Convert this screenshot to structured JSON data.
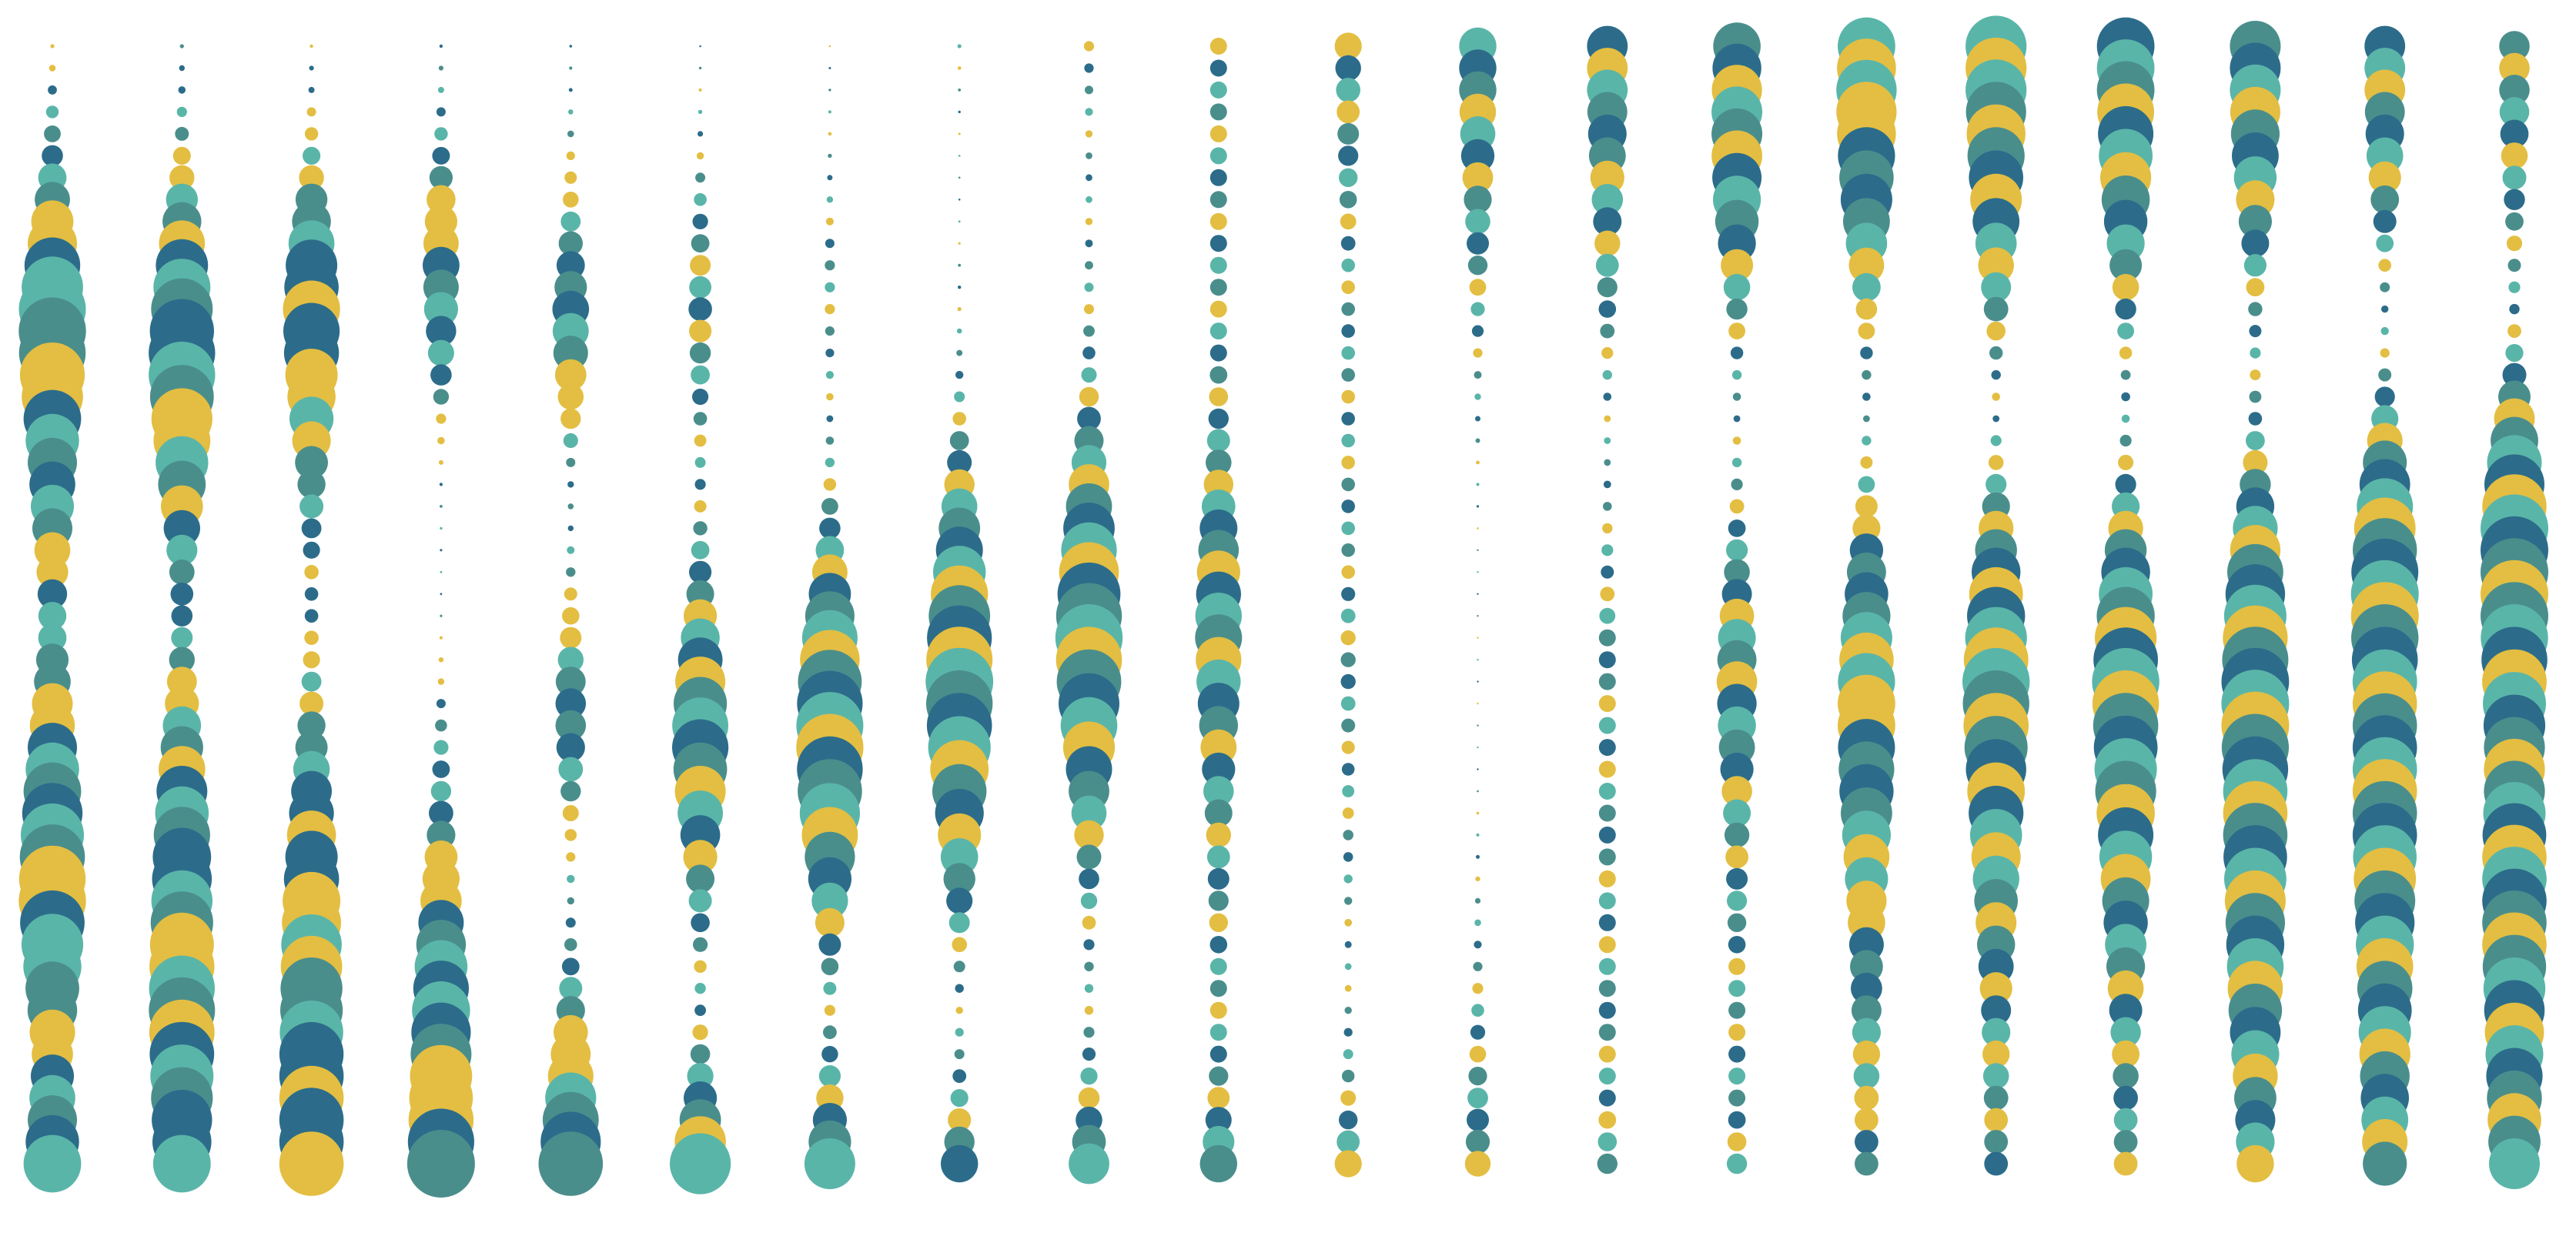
{
  "palette": {
    "yellow": "#E3BE42",
    "teal_light": "#5AB5A9",
    "teal_mid": "#4A8E8C",
    "blue_dark": "#2C6C8A"
  },
  "columns": [
    {
      "size": [
        0.06,
        0.15,
        0.3,
        0.55,
        0.8,
        1.0,
        0.98,
        0.85,
        0.7,
        0.6,
        0.45,
        0.4,
        0.55,
        0.7,
        0.85,
        0.95,
        1.0,
        0.9,
        0.75,
        0.6,
        0.7,
        0.85
      ],
      "colors": [
        "yellow",
        "teal_mid",
        "teal_light",
        "yellow",
        "teal_mid",
        "blue_dark",
        "teal_light",
        "yellow",
        "teal_mid",
        "teal_light",
        "blue_dark",
        "yellow",
        "teal_light",
        "teal_mid",
        "blue_dark"
      ]
    },
    {
      "size": [
        0.06,
        0.12,
        0.25,
        0.5,
        0.75,
        0.92,
        1.0,
        0.9,
        0.75,
        0.55,
        0.35,
        0.3,
        0.45,
        0.6,
        0.75,
        0.85,
        0.9,
        0.95,
        0.98,
        0.95,
        0.9,
        0.85
      ],
      "colors": [
        "teal_light",
        "blue_dark",
        "yellow",
        "teal_mid",
        "teal_light",
        "blue_dark",
        "yellow",
        "teal_mid",
        "teal_light",
        "yellow",
        "blue_dark",
        "teal_mid"
      ]
    },
    {
      "size": [
        0.05,
        0.1,
        0.25,
        0.5,
        0.75,
        0.85,
        0.8,
        0.65,
        0.45,
        0.3,
        0.2,
        0.2,
        0.3,
        0.45,
        0.6,
        0.75,
        0.85,
        0.9,
        0.92,
        0.95,
        0.95,
        0.95
      ],
      "colors": [
        "yellow",
        "blue_dark",
        "teal_mid",
        "yellow",
        "blue_dark",
        "teal_light",
        "yellow",
        "teal_mid",
        "blue_dark",
        "teal_light",
        "yellow",
        "blue_dark"
      ]
    },
    {
      "size": [
        0.05,
        0.1,
        0.25,
        0.45,
        0.55,
        0.5,
        0.35,
        0.15,
        0.05,
        0.04,
        0.03,
        0.04,
        0.1,
        0.2,
        0.3,
        0.45,
        0.6,
        0.75,
        0.85,
        0.9,
        0.95,
        1.0
      ],
      "colors": [
        "blue_dark",
        "teal_mid",
        "yellow",
        "teal_light",
        "blue_dark",
        "yellow",
        "teal_mid",
        "teal_light",
        "yellow",
        "blue_dark"
      ]
    },
    {
      "size": [
        0.04,
        0.06,
        0.12,
        0.25,
        0.4,
        0.55,
        0.5,
        0.3,
        0.1,
        0.08,
        0.15,
        0.3,
        0.45,
        0.45,
        0.3,
        0.15,
        0.1,
        0.2,
        0.4,
        0.6,
        0.8,
        0.95
      ],
      "colors": [
        "teal_mid",
        "yellow",
        "blue_dark",
        "teal_light",
        "yellow",
        "teal_mid",
        "blue_dark",
        "yellow",
        "teal_light",
        "teal_mid"
      ]
    },
    {
      "size": [
        0.03,
        0.05,
        0.1,
        0.2,
        0.3,
        0.35,
        0.3,
        0.2,
        0.15,
        0.2,
        0.35,
        0.55,
        0.75,
        0.85,
        0.75,
        0.55,
        0.35,
        0.2,
        0.15,
        0.3,
        0.55,
        0.9
      ],
      "colors": [
        "teal_light",
        "teal_mid",
        "yellow",
        "blue_dark",
        "teal_light",
        "yellow",
        "teal_mid",
        "blue_dark"
      ]
    },
    {
      "size": [
        0.03,
        0.04,
        0.06,
        0.1,
        0.15,
        0.15,
        0.12,
        0.1,
        0.15,
        0.3,
        0.55,
        0.8,
        0.95,
        1.0,
        0.95,
        0.8,
        0.55,
        0.3,
        0.15,
        0.25,
        0.45,
        0.75
      ],
      "colors": [
        "teal_mid",
        "blue_dark",
        "yellow",
        "teal_light",
        "blue_dark",
        "teal_mid",
        "yellow",
        "teal_light"
      ]
    },
    {
      "size": [
        0.06,
        0.04,
        0.03,
        0.03,
        0.04,
        0.06,
        0.1,
        0.2,
        0.4,
        0.6,
        0.8,
        0.95,
        1.0,
        0.95,
        0.8,
        0.6,
        0.4,
        0.2,
        0.1,
        0.15,
        0.3,
        0.55
      ],
      "colors": [
        "teal_light",
        "yellow",
        "blue_dark",
        "teal_mid",
        "yellow",
        "teal_light",
        "blue_dark",
        "teal_mid"
      ]
    },
    {
      "size": [
        0.15,
        0.12,
        0.1,
        0.1,
        0.12,
        0.15,
        0.2,
        0.35,
        0.55,
        0.75,
        0.9,
        1.0,
        0.95,
        0.8,
        0.6,
        0.4,
        0.25,
        0.15,
        0.12,
        0.2,
        0.35,
        0.6
      ],
      "colors": [
        "yellow",
        "teal_light",
        "blue_dark",
        "teal_mid",
        "yellow",
        "teal_light",
        "teal_mid",
        "blue_dark"
      ]
    },
    {
      "size": [
        0.25,
        0.25,
        0.25,
        0.25,
        0.25,
        0.25,
        0.25,
        0.3,
        0.4,
        0.55,
        0.65,
        0.7,
        0.65,
        0.55,
        0.45,
        0.35,
        0.3,
        0.25,
        0.25,
        0.25,
        0.35,
        0.55
      ],
      "colors": [
        "teal_mid",
        "teal_light",
        "blue_dark",
        "yellow",
        "teal_mid",
        "blue_dark",
        "teal_light",
        "yellow"
      ]
    },
    {
      "size": [
        0.4,
        0.35,
        0.3,
        0.25,
        0.2,
        0.2,
        0.2,
        0.2,
        0.2,
        0.2,
        0.2,
        0.22,
        0.22,
        0.2,
        0.18,
        0.15,
        0.12,
        0.1,
        0.1,
        0.15,
        0.25,
        0.4
      ],
      "colors": [
        "teal_light",
        "blue_dark",
        "teal_mid",
        "yellow",
        "teal_light",
        "blue_dark",
        "yellow",
        "teal_mid"
      ]
    },
    {
      "size": [
        0.55,
        0.55,
        0.5,
        0.4,
        0.3,
        0.2,
        0.12,
        0.08,
        0.05,
        0.03,
        0.02,
        0.02,
        0.02,
        0.02,
        0.03,
        0.05,
        0.08,
        0.12,
        0.18,
        0.25,
        0.32,
        0.38
      ],
      "colors": [
        "blue_dark",
        "teal_light",
        "teal_mid",
        "yellow",
        "blue_dark",
        "teal_light",
        "yellow",
        "teal_mid"
      ]
    },
    {
      "size": [
        0.6,
        0.6,
        0.55,
        0.45,
        0.35,
        0.25,
        0.15,
        0.1,
        0.1,
        0.15,
        0.2,
        0.25,
        0.25,
        0.25,
        0.25,
        0.25,
        0.25,
        0.25,
        0.25,
        0.25,
        0.25,
        0.3
      ],
      "colors": [
        "blue_dark",
        "teal_mid",
        "teal_light",
        "yellow",
        "blue_dark",
        "teal_light",
        "yellow",
        "teal_mid"
      ]
    },
    {
      "size": [
        0.7,
        0.75,
        0.75,
        0.7,
        0.5,
        0.3,
        0.15,
        0.1,
        0.15,
        0.25,
        0.4,
        0.55,
        0.6,
        0.55,
        0.45,
        0.35,
        0.3,
        0.25,
        0.25,
        0.25,
        0.25,
        0.3
      ],
      "colors": [
        "teal_light",
        "blue_dark",
        "yellow",
        "teal_mid",
        "teal_light",
        "yellow",
        "blue_dark",
        "teal_mid"
      ]
    },
    {
      "size": [
        0.85,
        0.9,
        0.85,
        0.75,
        0.55,
        0.3,
        0.15,
        0.1,
        0.2,
        0.4,
        0.6,
        0.75,
        0.85,
        0.85,
        0.8,
        0.7,
        0.6,
        0.5,
        0.45,
        0.4,
        0.35,
        0.35
      ],
      "colors": [
        "yellow",
        "blue_dark",
        "teal_light",
        "teal_mid",
        "yellow",
        "blue_dark",
        "teal_light",
        "yellow",
        "teal_mid"
      ]
    },
    {
      "size": [
        0.9,
        0.9,
        0.85,
        0.75,
        0.55,
        0.35,
        0.15,
        0.1,
        0.25,
        0.5,
        0.75,
        0.9,
        1.0,
        0.95,
        0.85,
        0.75,
        0.65,
        0.55,
        0.45,
        0.4,
        0.35,
        0.35
      ],
      "colors": [
        "teal_light",
        "yellow",
        "blue_dark",
        "teal_mid",
        "yellow",
        "teal_light",
        "blue_dark",
        "yellow",
        "teal_mid"
      ]
    },
    {
      "size": [
        0.85,
        0.85,
        0.8,
        0.7,
        0.5,
        0.3,
        0.15,
        0.12,
        0.25,
        0.5,
        0.75,
        0.9,
        1.0,
        0.95,
        0.9,
        0.8,
        0.7,
        0.6,
        0.5,
        0.4,
        0.35,
        0.35
      ],
      "colors": [
        "blue_dark",
        "teal_mid",
        "yellow",
        "teal_light",
        "blue_dark",
        "yellow",
        "teal_mid",
        "teal_light"
      ]
    },
    {
      "size": [
        0.75,
        0.75,
        0.7,
        0.55,
        0.35,
        0.2,
        0.15,
        0.2,
        0.4,
        0.65,
        0.85,
        0.95,
        1.0,
        1.0,
        0.95,
        0.95,
        0.9,
        0.85,
        0.8,
        0.7,
        0.6,
        0.55
      ],
      "colors": [
        "yellow",
        "teal_light",
        "blue_dark",
        "teal_mid",
        "yellow",
        "teal_light",
        "blue_dark",
        "teal_mid"
      ]
    },
    {
      "size": [
        0.6,
        0.6,
        0.55,
        0.4,
        0.2,
        0.1,
        0.15,
        0.4,
        0.7,
        0.9,
        1.0,
        1.0,
        0.95,
        0.95,
        0.95,
        0.95,
        0.9,
        0.85,
        0.8,
        0.75,
        0.7,
        0.65
      ],
      "colors": [
        "yellow",
        "teal_light",
        "blue_dark",
        "teal_mid",
        "yellow",
        "teal_light",
        "blue_dark",
        "teal_mid"
      ]
    },
    {
      "size": [
        0.45,
        0.45,
        0.4,
        0.3,
        0.2,
        0.15,
        0.3,
        0.6,
        0.85,
        1.0,
        1.0,
        1.0,
        0.95,
        0.9,
        0.9,
        0.95,
        0.95,
        0.95,
        0.9,
        0.85,
        0.8,
        0.75
      ],
      "colors": [
        "yellow",
        "teal_mid",
        "blue_dark",
        "teal_light",
        "yellow",
        "blue_dark",
        "teal_light",
        "teal_mid"
      ]
    }
  ]
}
